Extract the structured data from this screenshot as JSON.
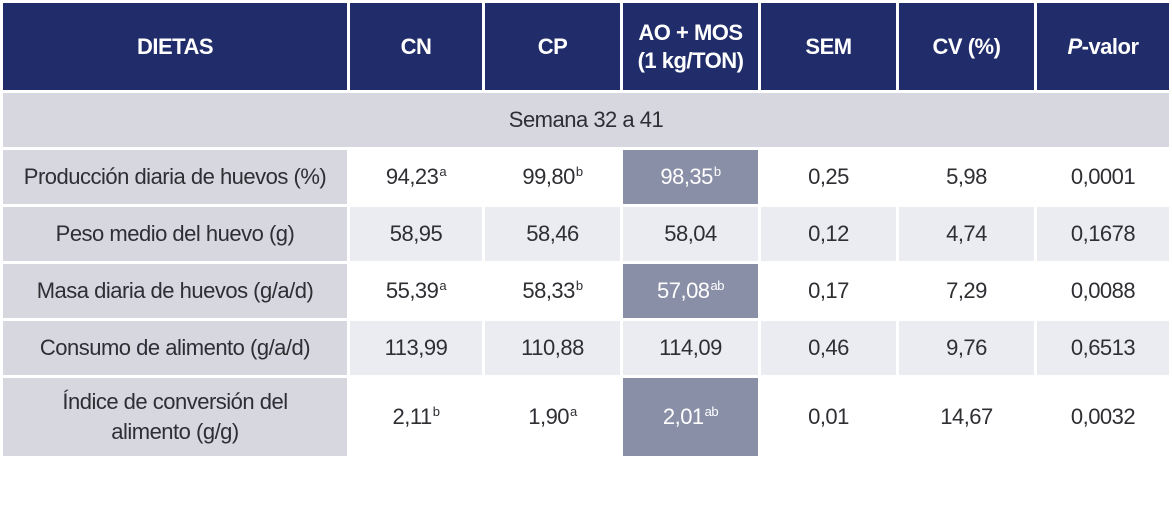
{
  "header": {
    "col0": "DIETAS",
    "col1": "CN",
    "col2": "CP",
    "col3_line1": "AO + MOS",
    "col3_line2": "(1 kg/TON)",
    "col4": "SEM",
    "col5": "CV (%)",
    "col6_italic": "P",
    "col6_rest": "-valor"
  },
  "section": "Semana 32 a 41",
  "rows": [
    {
      "label": "Producción diaria de huevos (%)",
      "cn": "94,23",
      "cn_sup": "a",
      "cp": "99,80",
      "cp_sup": "b",
      "ao": "98,35",
      "ao_sup": "b",
      "sem": "0,25",
      "cv": "5,98",
      "p": "0,0001"
    },
    {
      "label": "Peso medio del huevo (g)",
      "cn": "58,95",
      "cn_sup": "",
      "cp": "58,46",
      "cp_sup": "",
      "ao": "58,04",
      "ao_sup": "",
      "sem": "0,12",
      "cv": "4,74",
      "p": "0,1678"
    },
    {
      "label": "Masa diaria de huevos (g/a/d)",
      "cn": "55,39",
      "cn_sup": "a",
      "cp": "58,33",
      "cp_sup": "b",
      "ao": "57,08",
      "ao_sup": "ab",
      "sem": "0,17",
      "cv": "7,29",
      "p": "0,0088"
    },
    {
      "label": "Consumo de alimento (g/a/d)",
      "cn": "113,99",
      "cn_sup": "",
      "cp": "110,88",
      "cp_sup": "",
      "ao": "114,09",
      "ao_sup": "",
      "sem": "0,46",
      "cv": "9,76",
      "p": "0,6513"
    },
    {
      "label_line1": "Índice de conversión del",
      "label_line2": "alimento (g/g)",
      "cn": "2,11",
      "cn_sup": "b",
      "cp": "1,90",
      "cp_sup": "a",
      "ao": "2,01",
      "ao_sup": "ab",
      "sem": "0,01",
      "cv": "14,67",
      "p": "0,0032"
    }
  ],
  "colors": {
    "header_bg": "#212c6a",
    "label_bg": "#d6d7df",
    "highlight_bg": "#8a8fa8",
    "alt_row_bg": "#ebecf1"
  }
}
